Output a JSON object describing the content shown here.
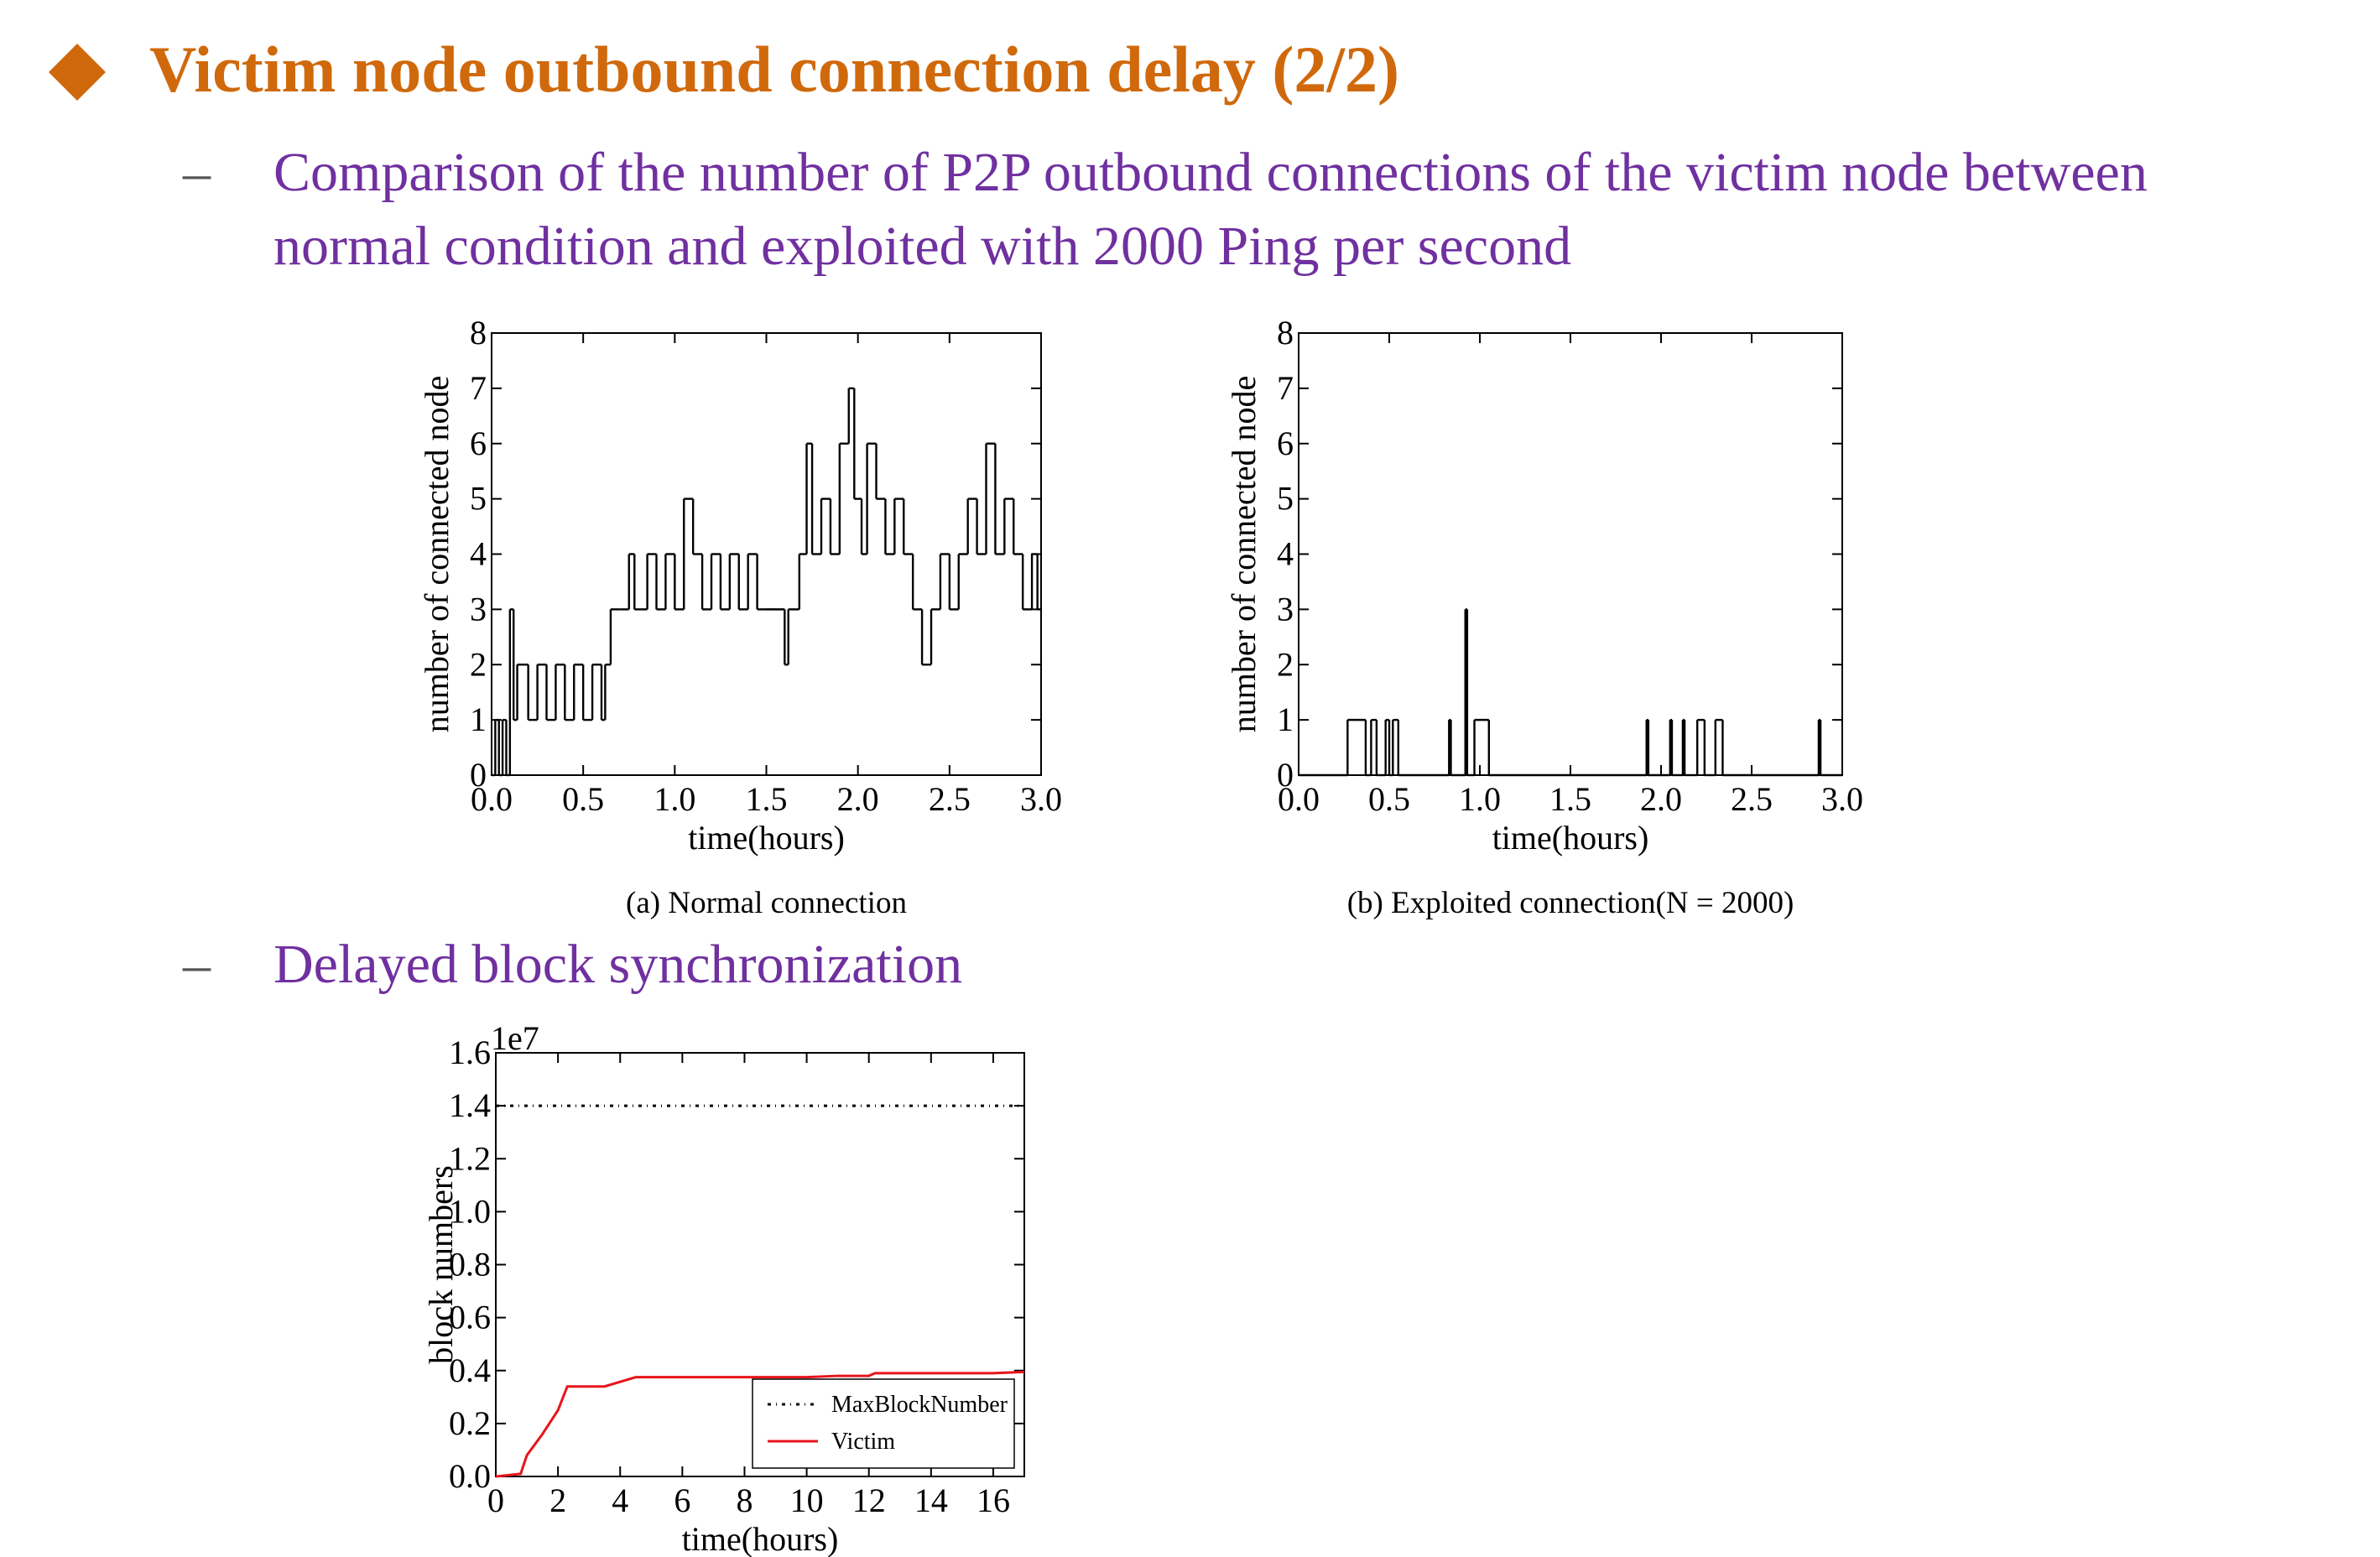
{
  "title": "Victim node outbound connection delay (2/2)",
  "bullets": [
    "Comparison of the number of P2P outbound connections of the victim node between normal condition and exploited with 2000 Ping per second",
    "Delayed block synchronization"
  ],
  "chart_data": [
    {
      "type": "line",
      "step": true,
      "caption": "(a) Normal connection",
      "xlabel": "time(hours)",
      "ylabel": "number of connected node",
      "x": [
        0,
        0.02,
        0.04,
        0.06,
        0.08,
        0.1,
        0.12,
        0.14,
        0.2,
        0.25,
        0.3,
        0.35,
        0.4,
        0.45,
        0.5,
        0.55,
        0.6,
        0.62,
        0.65,
        0.7,
        0.75,
        0.78,
        0.85,
        0.9,
        0.95,
        1.0,
        1.05,
        1.1,
        1.15,
        1.2,
        1.25,
        1.3,
        1.35,
        1.4,
        1.45,
        1.5,
        1.6,
        1.62,
        1.68,
        1.72,
        1.75,
        1.8,
        1.85,
        1.9,
        1.95,
        1.98,
        2.02,
        2.05,
        2.1,
        2.15,
        2.2,
        2.25,
        2.3,
        2.35,
        2.4,
        2.45,
        2.5,
        2.55,
        2.6,
        2.65,
        2.7,
        2.75,
        2.8,
        2.85,
        2.9,
        2.95,
        2.98
      ],
      "values": [
        0,
        1,
        0,
        1,
        0,
        3,
        1,
        2,
        1,
        2,
        1,
        2,
        1,
        2,
        1,
        2,
        1,
        2,
        3,
        3,
        4,
        3,
        4,
        3,
        4,
        3,
        5,
        4,
        3,
        4,
        3,
        4,
        3,
        4,
        3,
        3,
        2,
        3,
        4,
        6,
        4,
        5,
        4,
        6,
        7,
        5,
        4,
        6,
        5,
        4,
        5,
        4,
        3,
        2,
        3,
        4,
        3,
        4,
        5,
        4,
        6,
        4,
        5,
        4,
        3,
        4,
        3
      ],
      "color": "#000000",
      "xlim": [
        0,
        3
      ],
      "ylim": [
        0,
        8
      ],
      "xticks": [
        {
          "value": 0,
          "label": "0.0"
        },
        0.5,
        {
          "value": 1,
          "label": "1.0"
        },
        1.5,
        {
          "value": 2,
          "label": "2.0"
        },
        2.5,
        {
          "value": 3,
          "label": "3.0"
        }
      ],
      "yticks": [
        0,
        1,
        2,
        3,
        4,
        5,
        6,
        7,
        8
      ]
    },
    {
      "type": "line",
      "step": true,
      "caption": "(b) Exploited connection(N = 2000)",
      "xlabel": "time(hours)",
      "ylabel": "number of connected node",
      "x": [
        0,
        0.27,
        0.37,
        0.4,
        0.43,
        0.48,
        0.5,
        0.52,
        0.55,
        0.83,
        0.84,
        0.92,
        0.93,
        0.97,
        1.05,
        1.92,
        1.93,
        2.05,
        2.06,
        2.12,
        2.13,
        2.2,
        2.24,
        2.3,
        2.34,
        2.87,
        2.88,
        3.0
      ],
      "values": [
        0,
        1,
        0,
        1,
        0,
        1,
        0,
        1,
        0,
        1,
        0,
        3,
        0,
        1,
        0,
        1,
        0,
        1,
        0,
        1,
        0,
        1,
        0,
        1,
        0,
        1,
        0,
        0
      ],
      "color": "#000000",
      "xlim": [
        0,
        3
      ],
      "ylim": [
        0,
        8
      ],
      "xticks": [
        {
          "value": 0,
          "label": "0.0"
        },
        0.5,
        {
          "value": 1,
          "label": "1.0"
        },
        1.5,
        {
          "value": 2,
          "label": "2.0"
        },
        2.5,
        {
          "value": 3,
          "label": "3.0"
        }
      ],
      "yticks": [
        0,
        1,
        2,
        3,
        4,
        5,
        6,
        7,
        8
      ]
    },
    {
      "type": "line",
      "step": false,
      "xlabel": "time(hours)",
      "ylabel": "block numbers",
      "offset_label": "1e7",
      "legend": "lower right",
      "series": [
        {
          "name": "MaxBlockNumber",
          "color": "#000000",
          "dash": "4 6 1 6",
          "x": [
            0,
            17
          ],
          "values": [
            1.4,
            1.4
          ]
        },
        {
          "name": "Victim",
          "color": "#e8141b",
          "x": [
            0,
            0.8,
            1,
            1.5,
            2,
            2.3,
            3.5,
            4.5,
            10,
            11,
            12,
            12.2,
            16,
            17
          ],
          "values": [
            0,
            0.01,
            0.08,
            0.16,
            0.25,
            0.34,
            0.34,
            0.375,
            0.375,
            0.38,
            0.38,
            0.39,
            0.39,
            0.395
          ]
        }
      ],
      "xlim": [
        0,
        17
      ],
      "ylim": [
        0,
        1.6
      ],
      "xticks": [
        0,
        2,
        4,
        6,
        8,
        10,
        12,
        14,
        16
      ],
      "yticks": [
        {
          "value": 0,
          "label": "0.0"
        },
        0.2,
        0.4,
        0.6,
        0.8,
        {
          "value": 1,
          "label": "1.0"
        },
        1.2,
        1.4,
        1.6
      ]
    }
  ]
}
